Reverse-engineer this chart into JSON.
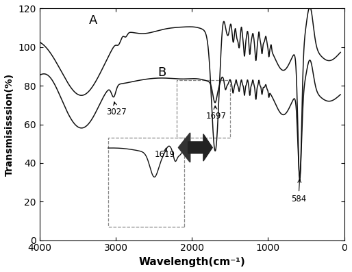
{
  "xlabel": "Wavelength(cm⁻¹)",
  "ylabel": "Transmisisssion(%)",
  "xlim": [
    4000,
    0
  ],
  "ylim": [
    0,
    120
  ],
  "yticks": [
    0,
    20,
    40,
    60,
    80,
    100,
    120
  ],
  "xticks": [
    4000,
    3000,
    2000,
    1000,
    0
  ],
  "line_color": "#111111",
  "label_A": "A",
  "label_B": "B",
  "ann_3027": "3027",
  "ann_1697": "1697",
  "ann_1619": "1619",
  "ann_584": "584"
}
